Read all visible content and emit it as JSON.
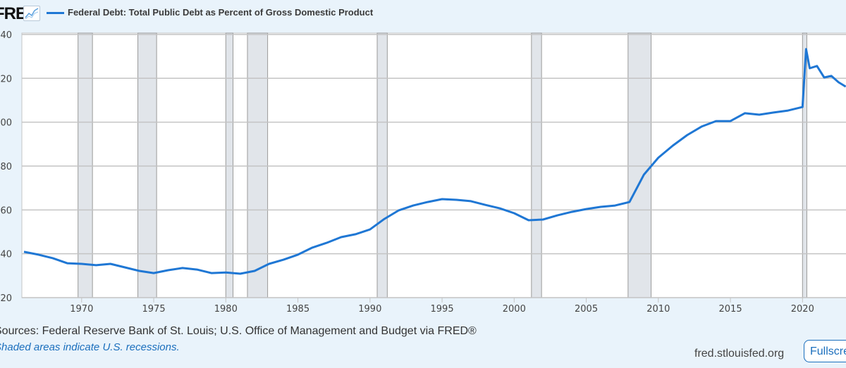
{
  "header": {
    "logo_text": "FRED",
    "title": "Federal Debt: Total Public Debt as Percent of Gross Domestic Product"
  },
  "footer": {
    "sources": "Sources: Federal Reserve Bank of St. Louis; U.S. Office of Management and Budget via FRED®",
    "note": "Shaded areas indicate U.S. recessions.",
    "site": "fred.stlouisfed.org",
    "fullscreen_label": "Fullscreen"
  },
  "colors": {
    "line": "#1f77d4",
    "recession": "#e1e5ea",
    "grid": "#c4c4c4",
    "background": "#e9f3fb"
  },
  "chart_data": {
    "type": "line",
    "title": "Federal Debt: Total Public Debt as Percent of Gross Domestic Product",
    "xlabel": "",
    "ylabel": "",
    "xlim": [
      1966,
      2023
    ],
    "ylim": [
      20,
      140
    ],
    "grid": true,
    "legend": "top-left",
    "yticks": [
      20,
      40,
      60,
      80,
      100,
      120,
      140
    ],
    "ytick_labels": [
      "20",
      "40",
      "60",
      "80",
      "00",
      "20",
      "40"
    ],
    "xticks": [
      1970,
      1975,
      1980,
      1985,
      1990,
      1995,
      2000,
      2005,
      2010,
      2015,
      2020
    ],
    "xtick_labels": [
      "1970",
      "1975",
      "1980",
      "1985",
      "1990",
      "1995",
      "2000",
      "2005",
      "2010",
      "2015",
      "2020"
    ],
    "recessions": [
      [
        1969.75,
        1970.75
      ],
      [
        1973.9,
        1975.2
      ],
      [
        1980.0,
        1980.5
      ],
      [
        1981.5,
        1982.9
      ],
      [
        1990.5,
        1991.2
      ],
      [
        2001.2,
        2001.9
      ],
      [
        2007.9,
        2009.5
      ],
      [
        2020.0,
        2020.3
      ]
    ],
    "series": [
      {
        "name": "Federal Debt: Total Public Debt as Percent of Gross Domestic Product",
        "x": [
          1966,
          1967,
          1968,
          1969,
          1970,
          1971,
          1972,
          1973,
          1974,
          1975,
          1976,
          1977,
          1978,
          1979,
          1980,
          1981,
          1982,
          1983,
          1984,
          1985,
          1986,
          1987,
          1988,
          1989,
          1990,
          1991,
          1992,
          1993,
          1994,
          1995,
          1996,
          1997,
          1998,
          1999,
          2000,
          2001,
          2002,
          2003,
          2004,
          2005,
          2006,
          2007,
          2008,
          2009,
          2010,
          2011,
          2012,
          2013,
          2014,
          2015,
          2016,
          2017,
          2018,
          2019,
          2020.0,
          2020.25,
          2020.5,
          2021,
          2021.5,
          2022,
          2022.5,
          2023
        ],
        "values": [
          40.9,
          39.6,
          38.0,
          35.7,
          35.4,
          34.8,
          35.4,
          33.8,
          32.2,
          31.2,
          32.5,
          33.5,
          32.8,
          31.2,
          31.5,
          30.9,
          32.2,
          35.4,
          37.3,
          39.6,
          42.8,
          45.0,
          47.6,
          48.9,
          51.1,
          55.9,
          59.8,
          62.0,
          63.6,
          64.9,
          64.6,
          64.0,
          62.3,
          60.7,
          58.5,
          55.3,
          55.6,
          57.5,
          59.1,
          60.4,
          61.4,
          62.0,
          63.6,
          76.1,
          83.8,
          89.3,
          94.1,
          98.0,
          100.5,
          100.5,
          104.1,
          103.4,
          104.4,
          105.3,
          106.9,
          133.3,
          124.6,
          125.6,
          120.4,
          121.1,
          118.2,
          116.2
        ]
      }
    ]
  }
}
